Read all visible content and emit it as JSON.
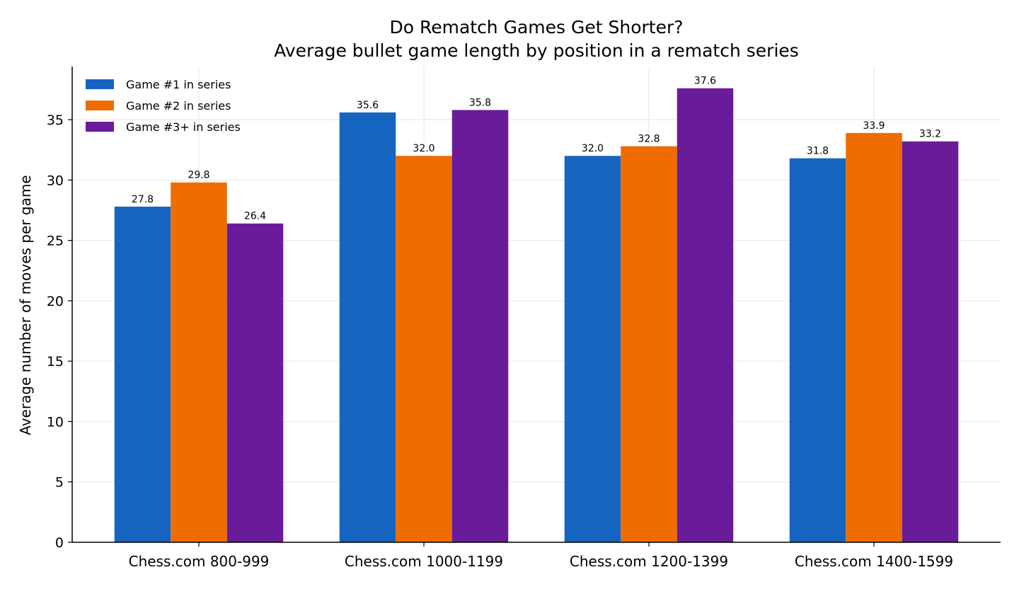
{
  "chart_data": {
    "type": "bar",
    "title": "Do Rematch Games Get Shorter?",
    "subtitle": "Average bullet game length by position in a rematch series",
    "xlabel": "",
    "ylabel": "Average number of moves per game",
    "categories": [
      "Chess.com 800-999",
      "Chess.com 1000-1199",
      "Chess.com 1200-1399",
      "Chess.com 1400-1599"
    ],
    "series": [
      {
        "name": "Game #1 in series",
        "color": "#1565c0",
        "values": [
          27.8,
          35.6,
          32.0,
          31.8
        ]
      },
      {
        "name": "Game #2 in series",
        "color": "#ef6c00",
        "values": [
          29.8,
          32.0,
          32.8,
          33.9
        ]
      },
      {
        "name": "Game #3+ in series",
        "color": "#6a1b9a",
        "values": [
          26.4,
          35.8,
          37.6,
          33.2
        ]
      }
    ],
    "ylim": [
      0,
      39.4
    ],
    "yticks": [
      0,
      5,
      10,
      15,
      20,
      25,
      30,
      35
    ],
    "grid": true,
    "legend_position": "top-left"
  }
}
